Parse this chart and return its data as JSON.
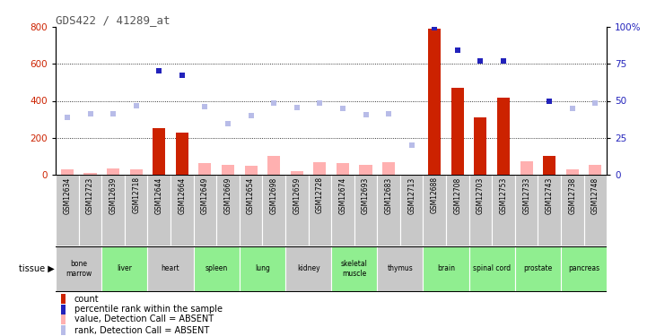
{
  "title": "GDS422 / 41289_at",
  "samples": [
    "GSM12634",
    "GSM12723",
    "GSM12639",
    "GSM12718",
    "GSM12644",
    "GSM12664",
    "GSM12649",
    "GSM12669",
    "GSM12654",
    "GSM12698",
    "GSM12659",
    "GSM12728",
    "GSM12674",
    "GSM12693",
    "GSM12683",
    "GSM12713",
    "GSM12688",
    "GSM12708",
    "GSM12703",
    "GSM12753",
    "GSM12733",
    "GSM12743",
    "GSM12738",
    "GSM12748"
  ],
  "tissues": [
    {
      "name": "bone\nmarrow",
      "start": 0,
      "end": 2,
      "green": false
    },
    {
      "name": "liver",
      "start": 2,
      "end": 4,
      "green": true
    },
    {
      "name": "heart",
      "start": 4,
      "end": 6,
      "green": false
    },
    {
      "name": "spleen",
      "start": 6,
      "end": 8,
      "green": true
    },
    {
      "name": "lung",
      "start": 8,
      "end": 10,
      "green": true
    },
    {
      "name": "kidney",
      "start": 10,
      "end": 12,
      "green": false
    },
    {
      "name": "skeletal\nmuscle",
      "start": 12,
      "end": 14,
      "green": true
    },
    {
      "name": "thymus",
      "start": 14,
      "end": 16,
      "green": false
    },
    {
      "name": "brain",
      "start": 16,
      "end": 18,
      "green": true
    },
    {
      "name": "spinal cord",
      "start": 18,
      "end": 20,
      "green": true
    },
    {
      "name": "prostate",
      "start": 20,
      "end": 22,
      "green": true
    },
    {
      "name": "pancreas",
      "start": 22,
      "end": 24,
      "green": true
    }
  ],
  "count_values": [
    null,
    null,
    null,
    null,
    250,
    230,
    null,
    null,
    null,
    null,
    null,
    null,
    null,
    null,
    null,
    null,
    790,
    470,
    310,
    415,
    null,
    100,
    null,
    null
  ],
  "percentile_values": [
    null,
    null,
    null,
    null,
    560,
    540,
    null,
    null,
    null,
    null,
    null,
    null,
    null,
    null,
    null,
    null,
    795,
    675,
    615,
    615,
    null,
    400,
    null,
    null
  ],
  "absent_value": [
    30,
    10,
    35,
    30,
    null,
    null,
    65,
    55,
    50,
    100,
    20,
    70,
    65,
    55,
    70,
    null,
    null,
    null,
    null,
    null,
    75,
    null,
    30,
    55
  ],
  "absent_rank": [
    310,
    330,
    330,
    375,
    null,
    null,
    370,
    275,
    320,
    390,
    365,
    390,
    360,
    325,
    330,
    160,
    null,
    null,
    null,
    null,
    null,
    null,
    360,
    390
  ],
  "ylim": [
    0,
    800
  ],
  "yticks": [
    0,
    200,
    400,
    600,
    800
  ],
  "right_yticks": [
    0,
    25,
    50,
    75,
    100
  ],
  "right_labels": [
    "0",
    "25",
    "50",
    "75",
    "100%"
  ],
  "gridlines": [
    200,
    400,
    600
  ],
  "color_red": "#cc2200",
  "color_pink": "#ffb0b0",
  "color_blue": "#2222bb",
  "color_lightblue": "#b8bce8",
  "color_gray": "#c8c8c8",
  "color_green": "#90ee90",
  "color_title": "#555555",
  "color_left_axis": "#cc2200",
  "color_right_axis": "#2222bb",
  "legend": [
    {
      "color": "#cc2200",
      "label": "count"
    },
    {
      "color": "#2222bb",
      "label": "percentile rank within the sample"
    },
    {
      "color": "#ffb0b0",
      "label": "value, Detection Call = ABSENT"
    },
    {
      "color": "#b8bce8",
      "label": "rank, Detection Call = ABSENT"
    }
  ]
}
